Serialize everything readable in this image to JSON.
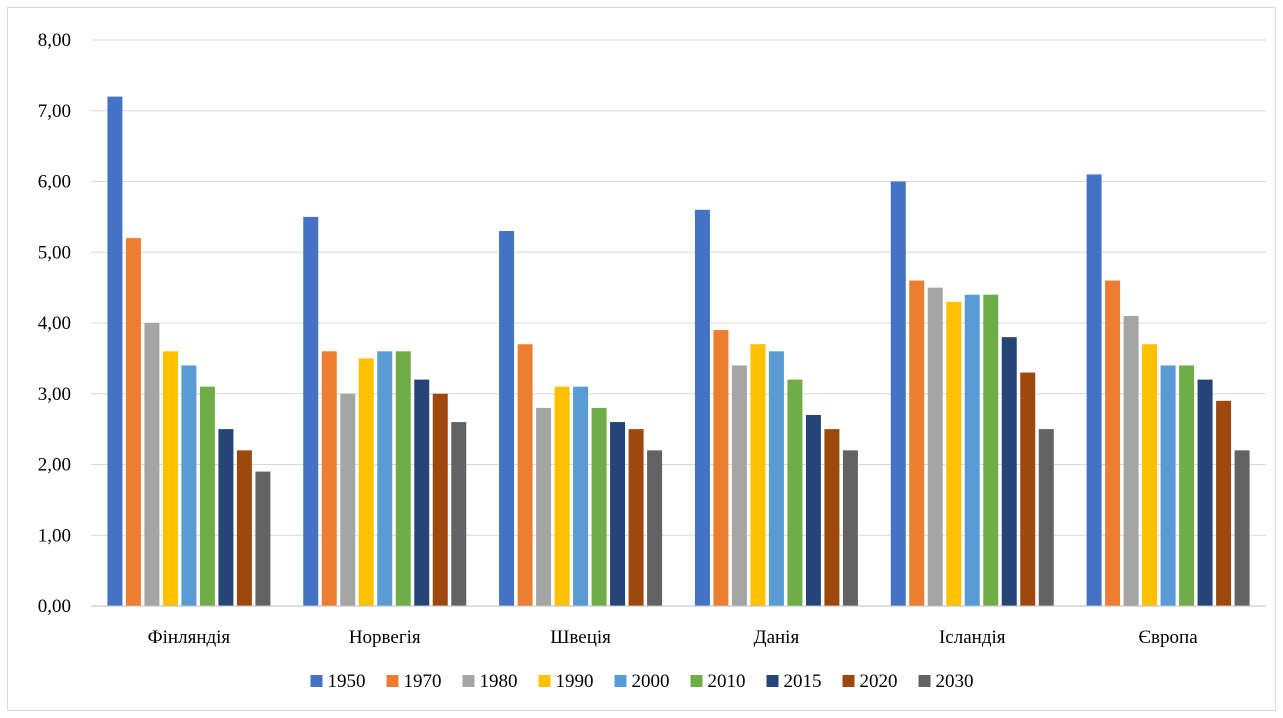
{
  "chart_data": {
    "type": "bar",
    "title": "",
    "xlabel": "",
    "ylabel": "",
    "ylim": [
      0,
      8
    ],
    "yticks": [
      "0,00",
      "1,00",
      "2,00",
      "3,00",
      "4,00",
      "5,00",
      "6,00",
      "7,00",
      "8,00"
    ],
    "grid": true,
    "legend_position": "bottom",
    "categories": [
      "Фінляндія",
      "Норвегія",
      "Швеція",
      "Данія",
      "Ісландія",
      "Європа"
    ],
    "series": [
      {
        "name": "1950",
        "color": "#4472C4",
        "values": [
          7.2,
          5.5,
          5.3,
          5.6,
          6.0,
          6.1
        ]
      },
      {
        "name": "1970",
        "color": "#ED7D31",
        "values": [
          5.2,
          3.6,
          3.7,
          3.9,
          4.6,
          4.6
        ]
      },
      {
        "name": "1980",
        "color": "#A5A5A5",
        "values": [
          4.0,
          3.0,
          2.8,
          3.4,
          4.5,
          4.1
        ]
      },
      {
        "name": "1990",
        "color": "#FFC000",
        "values": [
          3.6,
          3.5,
          3.1,
          3.7,
          4.3,
          3.7
        ]
      },
      {
        "name": "2000",
        "color": "#5B9BD5",
        "values": [
          3.4,
          3.6,
          3.1,
          3.6,
          4.4,
          3.4
        ]
      },
      {
        "name": "2010",
        "color": "#70AD47",
        "values": [
          3.1,
          3.6,
          2.8,
          3.2,
          4.4,
          3.4
        ]
      },
      {
        "name": "2015",
        "color": "#264478",
        "values": [
          2.5,
          3.2,
          2.6,
          2.7,
          3.8,
          3.2
        ]
      },
      {
        "name": "2020",
        "color": "#9E480E",
        "values": [
          2.2,
          3.0,
          2.5,
          2.5,
          3.3,
          2.9
        ]
      },
      {
        "name": "2030",
        "color": "#636363",
        "values": [
          1.9,
          2.6,
          2.2,
          2.2,
          2.5,
          2.2
        ]
      }
    ]
  }
}
